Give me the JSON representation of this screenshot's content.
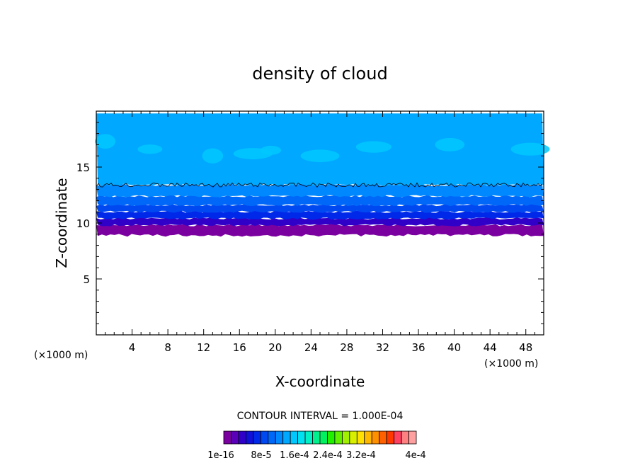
{
  "chart_data": {
    "type": "heatmap",
    "title": "density of cloud",
    "xlabel": "X-coordinate",
    "ylabel": "Z-coordinate",
    "x_unit_left": "(×1000 m)",
    "x_unit_right": "(×1000 m)",
    "xlim": [
      0,
      50
    ],
    "ylim": [
      0,
      20
    ],
    "xticks": [
      4,
      8,
      12,
      16,
      20,
      24,
      28,
      32,
      36,
      40,
      44,
      48
    ],
    "yticks": [
      5,
      10,
      15
    ],
    "contour_interval_label": "CONTOUR INTERVAL = 1.000E-04",
    "colorbar": {
      "labels": [
        "1e-16",
        "8e-5",
        "1.6e-4",
        "2.4e-4",
        "3.2e-4",
        "4e-4"
      ],
      "colors": [
        "#7a00a0",
        "#5a00b8",
        "#3000c8",
        "#1010d8",
        "#0028e8",
        "#0048f0",
        "#0068f8",
        "#0088ff",
        "#00a8ff",
        "#00c8ff",
        "#00e0f0",
        "#00f0c8",
        "#00f090",
        "#00f060",
        "#20f000",
        "#60f000",
        "#a0f000",
        "#d8f000",
        "#ffe000",
        "#ffb800",
        "#ff9000",
        "#ff6000",
        "#ff3800",
        "#ff4060",
        "#ff8080",
        "#ffa0a0"
      ]
    },
    "layers": [
      {
        "z_bottom": 8.9,
        "z_top": 9.8,
        "color": "#7a00a0"
      },
      {
        "z_bottom": 9.8,
        "z_top": 10.4,
        "color": "#3000c8"
      },
      {
        "z_bottom": 10.4,
        "z_top": 11.0,
        "color": "#0028e8"
      },
      {
        "z_bottom": 11.0,
        "z_top": 11.6,
        "color": "#0048f0"
      },
      {
        "z_bottom": 11.6,
        "z_top": 12.4,
        "color": "#0068f8"
      },
      {
        "z_bottom": 12.4,
        "z_top": 13.4,
        "color": "#0088ff"
      },
      {
        "z_bottom": 13.4,
        "z_top": 19.8,
        "color": "#00a8ff"
      }
    ],
    "contour_line_z": 13.4,
    "patches": [
      {
        "x": 1,
        "z": 17.3,
        "color": "#00c8ff"
      },
      {
        "x": 6,
        "z": 16.6,
        "color": "#00c8ff"
      },
      {
        "x": 13,
        "z": 16.0,
        "color": "#00c8ff"
      },
      {
        "x": 17.5,
        "z": 16.2,
        "color": "#00c8ff"
      },
      {
        "x": 19.5,
        "z": 16.5,
        "color": "#00c8ff"
      },
      {
        "x": 25,
        "z": 16.0,
        "color": "#00c8ff"
      },
      {
        "x": 31,
        "z": 16.8,
        "color": "#00c8ff"
      },
      {
        "x": 39.5,
        "z": 17.0,
        "color": "#00c8ff"
      },
      {
        "x": 48.5,
        "z": 16.6,
        "color": "#00c8ff"
      }
    ]
  }
}
